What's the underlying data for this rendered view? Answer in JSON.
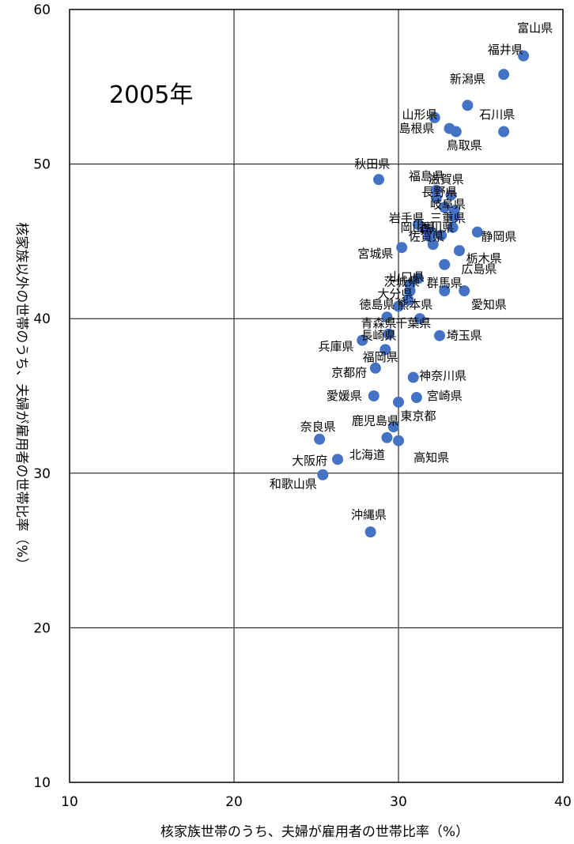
{
  "chart_data": {
    "type": "scatter",
    "title": "2005年",
    "xlabel": "核家族世帯のうち、夫婦が雇用者の世帯比率（%）",
    "ylabel": "核家族以外の世帯のうち、夫婦が雇用者の世帯比率（%）",
    "xlim": [
      10,
      40
    ],
    "ylim": [
      10,
      60
    ],
    "xticks": [
      "10",
      "20",
      "30",
      "40"
    ],
    "yticks": [
      "10",
      "20",
      "30",
      "40",
      "50",
      "60"
    ],
    "grid": true,
    "marker_color": "#4472c4",
    "points": [
      {
        "name": "富山県",
        "x": 37.6,
        "y": 57.0
      },
      {
        "name": "福井県",
        "x": 36.4,
        "y": 55.8
      },
      {
        "name": "新潟県",
        "x": 34.2,
        "y": 53.8
      },
      {
        "name": "山形県",
        "x": 32.2,
        "y": 53.0
      },
      {
        "name": "石川県",
        "x": 36.4,
        "y": 52.1
      },
      {
        "name": "島根県",
        "x": 33.1,
        "y": 52.3
      },
      {
        "name": "鳥取県",
        "x": 33.5,
        "y": 52.1
      },
      {
        "name": "秋田県",
        "x": 28.8,
        "y": 49.0
      },
      {
        "name": "福島県",
        "x": 32.3,
        "y": 48.3
      },
      {
        "name": "滋賀県",
        "x": 33.2,
        "y": 48.0
      },
      {
        "name": "長野県",
        "x": 32.3,
        "y": 47.8
      },
      {
        "name": "岐阜県",
        "x": 33.4,
        "y": 47.0
      },
      {
        "name": "山梨県",
        "x": 32.8,
        "y": 47.2
      },
      {
        "name": "岩手県",
        "x": 31.2,
        "y": 46.1
      },
      {
        "name": "三重県",
        "x": 33.4,
        "y": 46.6
      },
      {
        "name": "岡山県",
        "x": 31.6,
        "y": 45.8
      },
      {
        "name": "香川県",
        "x": 32.0,
        "y": 45.6
      },
      {
        "name": "徳島県2",
        "x": 33.3,
        "y": 45.9
      },
      {
        "name": "佐賀県",
        "x": 31.9,
        "y": 45.3
      },
      {
        "name": "奈良2",
        "x": 32.6,
        "y": 45.4
      },
      {
        "name": "静岡県",
        "x": 34.8,
        "y": 45.6
      },
      {
        "name": "山口県",
        "x": 32.1,
        "y": 44.8
      },
      {
        "name": "宮城県",
        "x": 30.2,
        "y": 44.6
      },
      {
        "name": "栃木県",
        "x": 33.7,
        "y": 44.4
      },
      {
        "name": "広島県",
        "x": 32.8,
        "y": 43.5
      },
      {
        "name": "山口2",
        "x": 31.2,
        "y": 42.6
      },
      {
        "name": "茨城県",
        "x": 30.7,
        "y": 42.2
      },
      {
        "name": "群馬県",
        "x": 32.8,
        "y": 41.8
      },
      {
        "name": "大分県",
        "x": 30.7,
        "y": 41.8
      },
      {
        "name": "愛知県",
        "x": 34.0,
        "y": 41.8
      },
      {
        "name": "熊本県",
        "x": 30.6,
        "y": 41.2
      },
      {
        "name": "徳島県",
        "x": 30.0,
        "y": 40.8
      },
      {
        "name": "千葉県",
        "x": 31.3,
        "y": 40.0
      },
      {
        "name": "青森県",
        "x": 29.3,
        "y": 40.1
      },
      {
        "name": "長崎県",
        "x": 29.4,
        "y": 39.0
      },
      {
        "name": "埼玉県",
        "x": 32.5,
        "y": 38.9
      },
      {
        "name": "兵庫県",
        "x": 27.8,
        "y": 38.6
      },
      {
        "name": "福岡県",
        "x": 29.2,
        "y": 38.0
      },
      {
        "name": "京都府",
        "x": 28.6,
        "y": 36.8
      },
      {
        "name": "神奈川県",
        "x": 30.9,
        "y": 36.2
      },
      {
        "name": "愛媛県",
        "x": 28.5,
        "y": 35.0
      },
      {
        "name": "宮崎県",
        "x": 31.1,
        "y": 34.9
      },
      {
        "name": "東京都",
        "x": 30.0,
        "y": 34.6
      },
      {
        "name": "鹿児島県",
        "x": 29.7,
        "y": 33.0
      },
      {
        "name": "奈良県",
        "x": 25.2,
        "y": 32.2
      },
      {
        "name": "北海道",
        "x": 29.3,
        "y": 32.3
      },
      {
        "name": "高知県",
        "x": 30.0,
        "y": 32.1
      },
      {
        "name": "大阪府",
        "x": 26.3,
        "y": 30.9
      },
      {
        "name": "和歌山県",
        "x": 25.4,
        "y": 29.9
      },
      {
        "name": "沖縄県",
        "x": 28.3,
        "y": 26.2
      }
    ],
    "labels": [
      {
        "text": "富山県",
        "x": 38.3,
        "y": 58.8
      },
      {
        "text": "福井県",
        "x": 36.5,
        "y": 57.4
      },
      {
        "text": "新潟県",
        "x": 34.2,
        "y": 55.5
      },
      {
        "text": "山形県",
        "x": 31.3,
        "y": 53.2
      },
      {
        "text": "石川県",
        "x": 36.0,
        "y": 53.2
      },
      {
        "text": "島根県",
        "x": 31.1,
        "y": 52.3
      },
      {
        "text": "鳥取県",
        "x": 34.0,
        "y": 51.2
      },
      {
        "text": "秋田県",
        "x": 28.4,
        "y": 50.0
      },
      {
        "text": "福島県",
        "x": 31.7,
        "y": 49.2
      },
      {
        "text": "滋賀県",
        "x": 32.9,
        "y": 49.0
      },
      {
        "text": "長野県",
        "x": 32.5,
        "y": 48.2
      },
      {
        "text": "岐阜県",
        "x": 33.0,
        "y": 47.4
      },
      {
        "text": "岩手県",
        "x": 30.5,
        "y": 46.5
      },
      {
        "text": "三重県",
        "x": 33.0,
        "y": 46.5
      },
      {
        "text": "岡山県",
        "x": 31.2,
        "y": 45.9
      },
      {
        "text": "香川県",
        "x": 32.3,
        "y": 45.9
      },
      {
        "text": "佐賀県",
        "x": 31.7,
        "y": 45.3
      },
      {
        "text": "静岡県",
        "x": 36.1,
        "y": 45.3
      },
      {
        "text": "宮城県",
        "x": 28.6,
        "y": 44.2
      },
      {
        "text": "栃木県",
        "x": 35.2,
        "y": 43.9
      },
      {
        "text": "広島県",
        "x": 34.9,
        "y": 43.2
      },
      {
        "text": "山口県",
        "x": 30.5,
        "y": 42.7
      },
      {
        "text": "茨城県",
        "x": 30.2,
        "y": 42.4
      },
      {
        "text": "群馬県",
        "x": 32.8,
        "y": 42.3
      },
      {
        "text": "大分県",
        "x": 29.8,
        "y": 41.6
      },
      {
        "text": "愛知県",
        "x": 35.5,
        "y": 40.9
      },
      {
        "text": "徳島県",
        "x": 28.7,
        "y": 40.9
      },
      {
        "text": "熊本県",
        "x": 31.0,
        "y": 40.9
      },
      {
        "text": "青森県",
        "x": 28.8,
        "y": 39.7
      },
      {
        "text": "千葉県",
        "x": 30.9,
        "y": 39.7
      },
      {
        "text": "長崎県",
        "x": 28.8,
        "y": 38.9
      },
      {
        "text": "埼玉県",
        "x": 34.0,
        "y": 38.9
      },
      {
        "text": "兵庫県",
        "x": 26.2,
        "y": 38.2
      },
      {
        "text": "福岡県",
        "x": 28.9,
        "y": 37.5
      },
      {
        "text": "京都府",
        "x": 27.0,
        "y": 36.5
      },
      {
        "text": "神奈川県",
        "x": 32.7,
        "y": 36.3
      },
      {
        "text": "愛媛県",
        "x": 26.7,
        "y": 35.0
      },
      {
        "text": "宮崎県",
        "x": 32.8,
        "y": 35.0
      },
      {
        "text": "東京都",
        "x": 31.2,
        "y": 33.7
      },
      {
        "text": "鹿児島県",
        "x": 28.6,
        "y": 33.4
      },
      {
        "text": "奈良県",
        "x": 25.1,
        "y": 33.0
      },
      {
        "text": "北海道",
        "x": 28.1,
        "y": 31.2
      },
      {
        "text": "高知県",
        "x": 32.0,
        "y": 31.0
      },
      {
        "text": "大阪府",
        "x": 24.6,
        "y": 30.8
      },
      {
        "text": "和歌山県",
        "x": 23.6,
        "y": 29.3
      },
      {
        "text": "沖縄県",
        "x": 28.2,
        "y": 27.3
      }
    ]
  }
}
